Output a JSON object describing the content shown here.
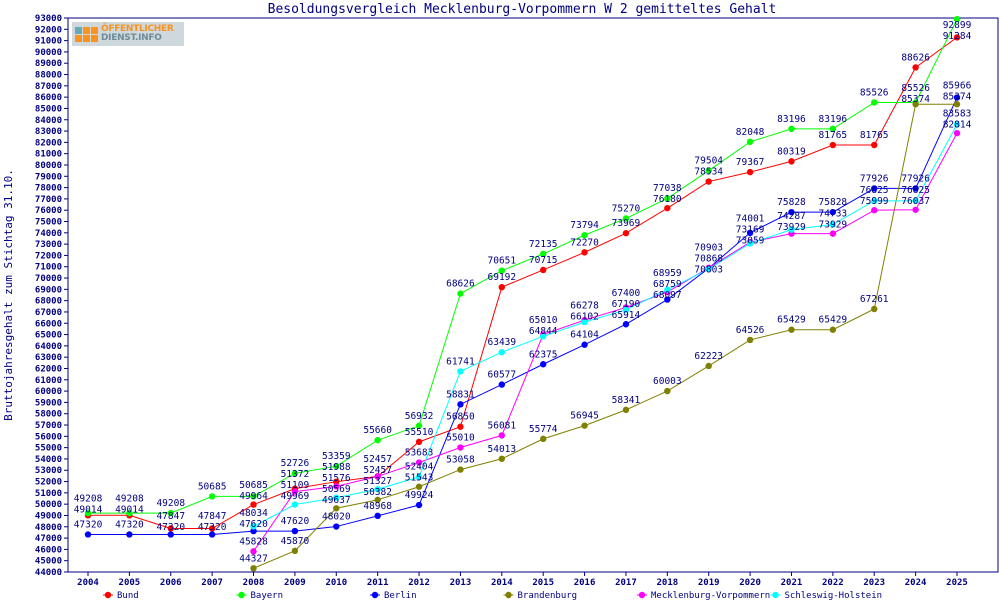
{
  "chart_data": {
    "type": "line",
    "title": "Besoldungsvergleich Mecklenburg-Vorpommern W 2 gemitteltes Gehalt",
    "xlabel": "",
    "ylabel": "Bruttojahresgehalt zum Stichtag 31.10.",
    "ylim": [
      44000,
      93000
    ],
    "ytick_step": 1000,
    "grid": false,
    "legend_position": "bottom",
    "x": [
      "2004",
      "2005",
      "2006",
      "2007",
      "2008",
      "2009",
      "2010",
      "2011",
      "2012",
      "2013",
      "2014",
      "2015",
      "2016",
      "2017",
      "2018",
      "2019",
      "2020",
      "2021",
      "2022",
      "2023",
      "2024",
      "2025"
    ],
    "series": [
      {
        "name": "Bund",
        "color": "#ff0000",
        "values": [
          49014,
          49014,
          47847,
          47847,
          49964,
          51372,
          51988,
          52457,
          55510,
          56850,
          69192,
          70715,
          72270,
          73969,
          76180,
          78534,
          79367,
          80319,
          81765,
          81765,
          88626,
          91284
        ]
      },
      {
        "name": "Bayern",
        "color": "#00ff00",
        "values": [
          49208,
          49208,
          49208,
          50685,
          50685,
          52726,
          53359,
          55660,
          56932,
          68626,
          70651,
          72135,
          73794,
          75270,
          77038,
          79504,
          82048,
          83196,
          83196,
          85526,
          85526,
          92899
        ]
      },
      {
        "name": "Berlin",
        "color": "#0000ff",
        "values": [
          47320,
          47320,
          47320,
          47320,
          47620,
          47620,
          48020,
          48968,
          49924,
          58831,
          60577,
          62375,
          64104,
          65914,
          68097,
          70868,
          74001,
          75828,
          75828,
          77926,
          77926,
          85966
        ]
      },
      {
        "name": "Brandenburg",
        "color": "#808000",
        "values": [
          null,
          null,
          null,
          null,
          44327,
          45870,
          49637,
          50382,
          51543,
          53058,
          54013,
          55774,
          56945,
          58341,
          60003,
          62223,
          64526,
          65429,
          65429,
          67261,
          85374,
          85374
        ]
      },
      {
        "name": "Mecklenburg-Vorpommern",
        "color": "#ff00ff",
        "values": [
          null,
          null,
          null,
          null,
          45828,
          51109,
          51576,
          52457,
          53683,
          55010,
          56081,
          65010,
          66278,
          67400,
          68759,
          70903,
          73169,
          73929,
          73929,
          75999,
          76037,
          82814
        ]
      },
      {
        "name": "Schleswig-Holstein",
        "color": "#00ffff",
        "values": [
          null,
          null,
          null,
          null,
          48034,
          49969,
          50569,
          51327,
          52404,
          61741,
          63439,
          64844,
          66102,
          67190,
          68959,
          70803,
          73059,
          74287,
          74733,
          76825,
          76825,
          83583
        ]
      }
    ]
  },
  "logo": {
    "line1": "ÖFFENTLICHER",
    "line2a": "DIENST",
    "line2b": ".INFO"
  }
}
